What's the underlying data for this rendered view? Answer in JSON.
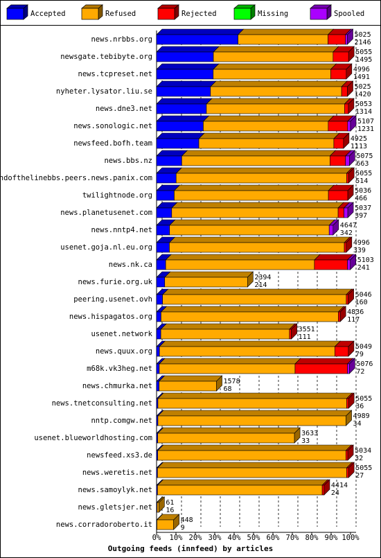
{
  "chart_data": {
    "type": "stacked-bar-3d",
    "orientation": "horizontal",
    "title": "Outgoing feeds (innfeed) by articles",
    "legend": "top",
    "grid": true,
    "categories": [
      "news.nrbbs.org",
      "newsgate.tebibyte.org",
      "news.tcpreset.net",
      "nyheter.lysator.liu.se",
      "news.dne3.net",
      "news.sonologic.net",
      "newsfeed.bofh.team",
      "news.bbs.nz",
      "endofthelinebbs.peers.news.panix.com",
      "twilightnode.org",
      "news.planetusenet.com",
      "news.nntp4.net",
      "usenet.goja.nl.eu.org",
      "news.nk.ca",
      "news.furie.org.uk",
      "peering.usenet.ovh",
      "news.hispagatos.org",
      "usenet.network",
      "news.quux.org",
      "m68k.vk3heg.net",
      "news.chmurka.net",
      "news.tnetconsulting.net",
      "nntp.comgw.net",
      "usenet.blueworldhosting.com",
      "newsfeed.xs3.de",
      "news.weretis.net",
      "news.samoylyk.net",
      "news.gletsjer.net",
      "news.corradoroberto.it"
    ],
    "offered": [
      5025,
      5055,
      4996,
      5025,
      5053,
      5107,
      4925,
      5075,
      5055,
      5036,
      5037,
      4647,
      4996,
      5103,
      2394,
      5046,
      4836,
      3551,
      5049,
      5076,
      1578,
      5055,
      4989,
      3633,
      5034,
      5055,
      4414,
      61,
      448
    ],
    "accepted_counts": [
      2146,
      1495,
      1491,
      1420,
      1314,
      1231,
      1113,
      663,
      514,
      466,
      397,
      342,
      339,
      241,
      214,
      160,
      117,
      111,
      79,
      72,
      68,
      36,
      34,
      33,
      32,
      27,
      24,
      16,
      9
    ],
    "series": [
      {
        "name": "Accepted",
        "color": "#0000ff",
        "values": [
          42.0,
          29.3,
          29.2,
          27.8,
          25.7,
          24.1,
          21.8,
          13.0,
          10.1,
          9.1,
          7.8,
          6.7,
          6.6,
          4.7,
          4.2,
          3.1,
          2.3,
          2.2,
          1.5,
          1.4,
          1.3,
          0.7,
          0.7,
          0.6,
          0.6,
          0.5,
          0.5,
          0.3,
          0.2
        ]
      },
      {
        "name": "Refused",
        "color": "#ffaa00",
        "values": [
          46.4,
          61.7,
          60.6,
          67.6,
          71.2,
          64.4,
          69.6,
          76.4,
          87.9,
          79.5,
          85.8,
          82.3,
          90.2,
          76.7,
          42.7,
          94.7,
          91.4,
          66.3,
          90.4,
          70.0,
          29.6,
          97.3,
          97.0,
          70.5,
          97.0,
          97.5,
          84.9,
          0.9,
          8.6
        ]
      },
      {
        "name": "Rejected",
        "color": "#ff0000",
        "values": [
          9,
          8,
          8,
          3,
          2,
          10,
          5,
          8,
          1,
          10,
          3,
          0,
          1,
          17,
          0,
          1,
          1,
          1,
          7,
          27,
          0,
          1,
          0,
          0,
          1,
          1,
          1,
          0,
          0
        ]
      },
      {
        "name": "Missing",
        "color": "#00ff00",
        "values": [
          0,
          0,
          0,
          0,
          0,
          0,
          0,
          0,
          0,
          0,
          0,
          0,
          0,
          0,
          0,
          0,
          0,
          0,
          0,
          0,
          0,
          0,
          0,
          0,
          0,
          0,
          0,
          0,
          0
        ]
      },
      {
        "name": "Spooled",
        "color": "#aa00ff",
        "values": [
          1,
          0,
          0,
          0,
          0,
          1.5,
          0,
          2,
          0,
          0,
          2,
          2,
          0,
          1.5,
          0,
          0,
          0,
          0,
          0,
          1,
          0,
          0,
          0,
          0,
          0,
          0,
          0,
          0,
          0
        ]
      }
    ],
    "xlim": [
      0,
      100
    ],
    "xticks": [
      {
        "value": 0,
        "label": "0%"
      },
      {
        "value": 10,
        "label": "10%"
      },
      {
        "value": 20,
        "label": "20%"
      },
      {
        "value": 30,
        "label": "30%"
      },
      {
        "value": 40,
        "label": "40%"
      },
      {
        "value": 50,
        "label": "50%"
      },
      {
        "value": 60,
        "label": "60%"
      },
      {
        "value": 70,
        "label": "70%"
      },
      {
        "value": 80,
        "label": "80%"
      },
      {
        "value": 90,
        "label": "90%"
      },
      {
        "value": 100,
        "label": "100%"
      }
    ]
  }
}
